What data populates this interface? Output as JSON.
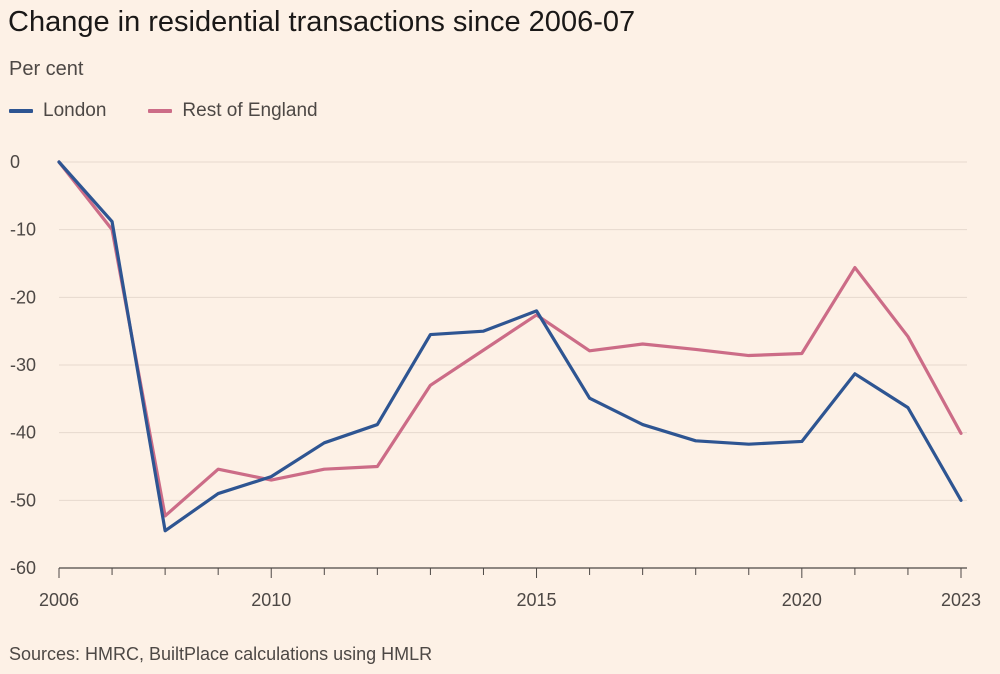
{
  "chart_data": {
    "type": "line",
    "title": "Change in residential transactions since 2006-07",
    "subtitle": "Per cent",
    "source": "Sources: HMRC, BuiltPlace calculations using HMLR",
    "x": [
      2006,
      2007,
      2008,
      2009,
      2010,
      2011,
      2012,
      2013,
      2014,
      2015,
      2016,
      2017,
      2018,
      2019,
      2020,
      2021,
      2022,
      2023
    ],
    "series": [
      {
        "name": "London",
        "color": "#2e5592",
        "values": [
          0,
          -8.8,
          -54.5,
          -49.0,
          -46.5,
          -41.5,
          -38.8,
          -25.5,
          -25.0,
          -22.0,
          -34.9,
          -38.8,
          -41.2,
          -41.7,
          -41.3,
          -31.3,
          -36.3,
          -50.0
        ]
      },
      {
        "name": "Rest of England",
        "color": "#cc6c87",
        "values": [
          0,
          -10.0,
          -52.3,
          -45.4,
          -47.0,
          -45.4,
          -45.0,
          -33.0,
          -27.8,
          -22.6,
          -27.9,
          -26.9,
          -27.7,
          -28.6,
          -28.3,
          -15.6,
          -25.8,
          -40.1
        ]
      }
    ],
    "ylim": [
      -60,
      0
    ],
    "yticks": [
      0,
      -10,
      -20,
      -30,
      -40,
      -50,
      -60
    ],
    "xlim": [
      2006,
      2023
    ],
    "xticks_labeled": [
      2006,
      2010,
      2015,
      2020,
      2023
    ],
    "grid": "horizontal",
    "legend": "top-left",
    "xlabel": "",
    "ylabel": ""
  }
}
